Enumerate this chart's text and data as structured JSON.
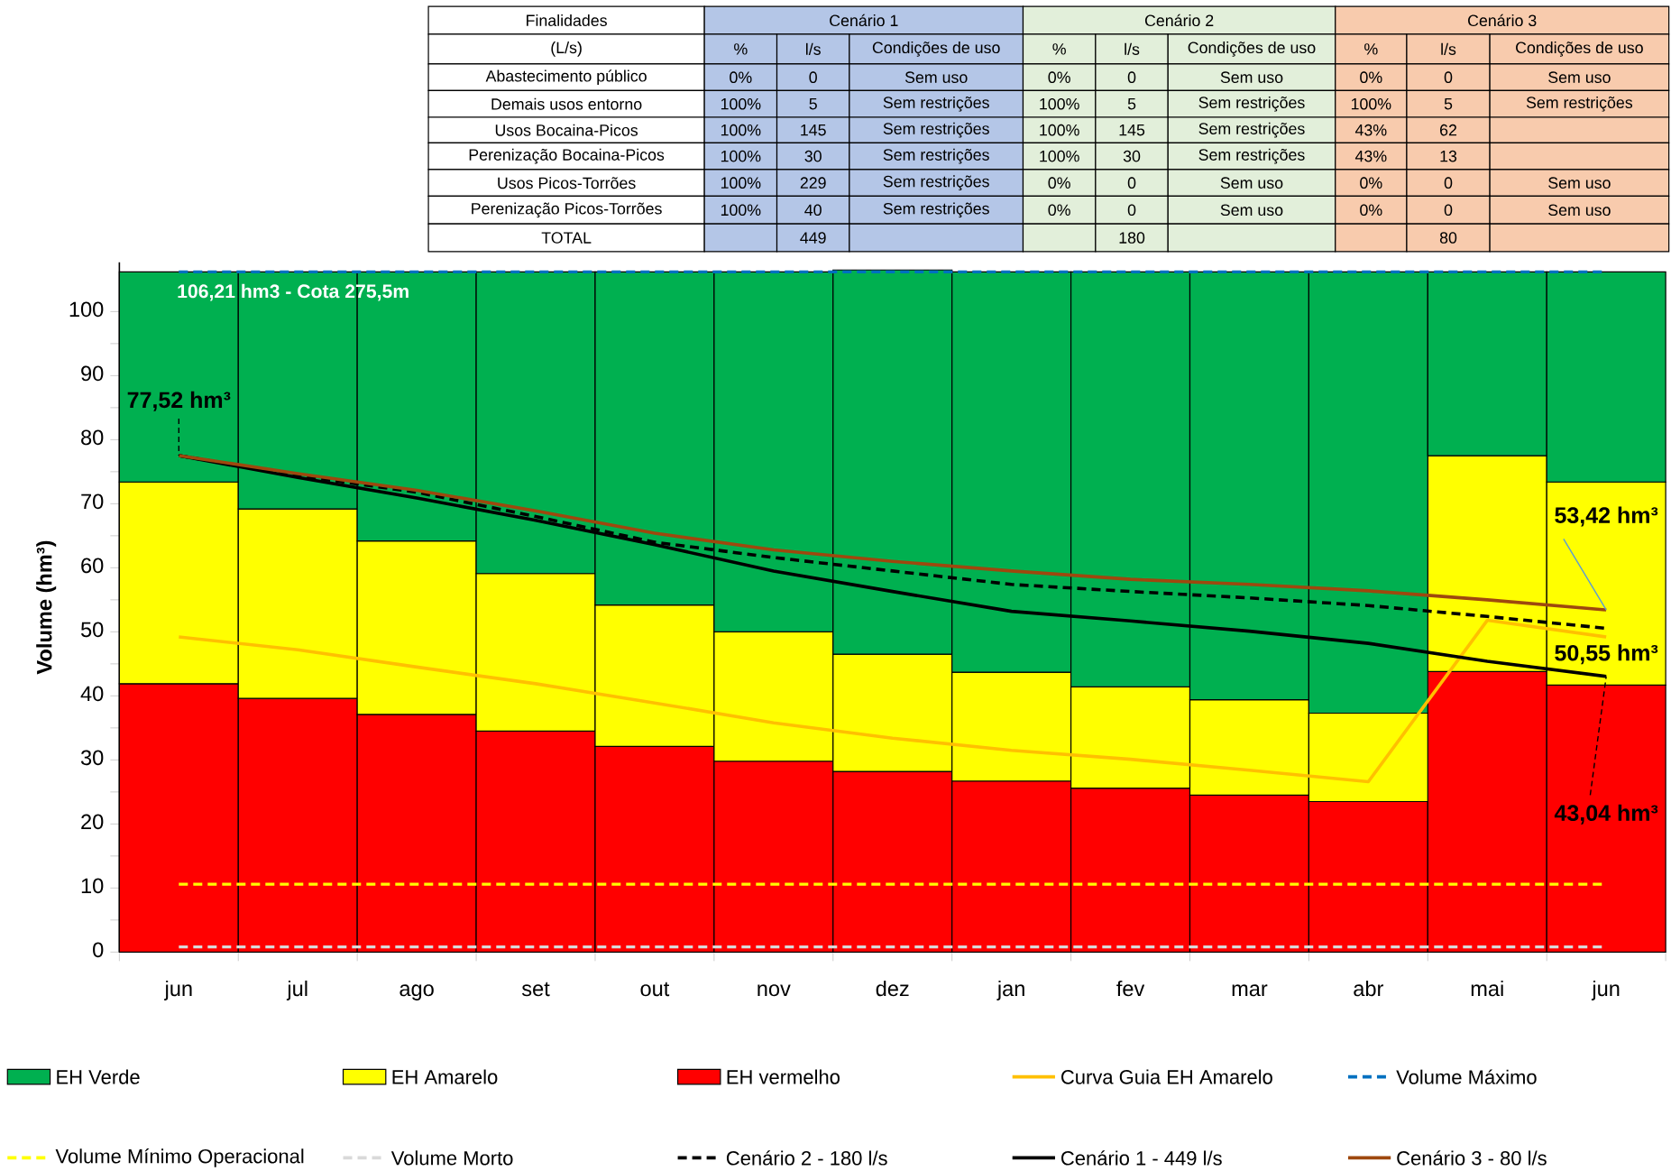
{
  "chart_data": {
    "type": "bar",
    "stacked": true,
    "ylabel": "Volume (hm³)",
    "categories": [
      "jun",
      "jul",
      "ago",
      "set",
      "out",
      "nov",
      "dez",
      "jan",
      "fev",
      "mar",
      "abr",
      "mai",
      "jun"
    ],
    "ylim": [
      0,
      107.7
    ],
    "yticks": [
      0,
      10,
      20,
      30,
      40,
      50,
      60,
      70,
      80,
      90,
      100
    ],
    "legend": "bottom",
    "series": [
      {
        "name": "EH vermelho",
        "color": "#ff0000",
        "values": [
          41.9,
          39.6,
          37.1,
          34.5,
          32.1,
          29.8,
          28.2,
          26.7,
          25.6,
          24.5,
          23.5,
          43.8,
          41.7
        ]
      },
      {
        "name": "EH Amarelo",
        "color": "#ffff00",
        "values": [
          31.5,
          29.6,
          27.1,
          24.6,
          22.1,
          20.2,
          18.3,
          17.0,
          15.8,
          14.9,
          13.8,
          33.7,
          31.7
        ]
      },
      {
        "name": "EH Verde",
        "color": "#00b050",
        "values": [
          32.8,
          37.0,
          42.0,
          47.1,
          52.0,
          56.2,
          60.0,
          62.5,
          64.8,
          66.8,
          68.9,
          28.7,
          32.8
        ]
      },
      {
        "name": "Curva Guia EH Amarelo",
        "type": "line",
        "color": "#ffc000",
        "values": [
          49.2,
          47.2,
          44.5,
          41.9,
          38.9,
          35.8,
          33.4,
          31.5,
          30.1,
          28.4,
          26.6,
          51.8,
          49.2
        ]
      },
      {
        "name": "Cenário 2 - 180 l/s",
        "type": "line",
        "line_style": "dashed",
        "color": "#000000",
        "values": [
          77.52,
          74.4,
          71.8,
          68.0,
          64.0,
          61.6,
          59.5,
          57.4,
          56.3,
          55.3,
          54.1,
          52.4,
          50.55
        ]
      },
      {
        "name": "Cenário 1 - 449 l/s",
        "type": "line",
        "color": "#000000",
        "values": [
          77.52,
          74.1,
          70.9,
          67.4,
          63.6,
          59.5,
          56.3,
          53.2,
          51.7,
          50.1,
          48.2,
          45.4,
          43.04
        ]
      },
      {
        "name": "Cenário 3 - 80 l/s",
        "type": "line",
        "color": "#9e480e",
        "values": [
          77.52,
          74.7,
          72.1,
          68.9,
          65.4,
          62.8,
          61.0,
          59.5,
          58.2,
          57.4,
          56.4,
          55.0,
          53.42
        ]
      }
    ],
    "ref_lines": [
      {
        "axis": "y",
        "value": 106.21,
        "label": "Volume Máximo",
        "color": "#0070c0",
        "line_style": "dashed"
      },
      {
        "axis": "y",
        "value": 10.6,
        "label": "Volume Mínimo Operacional",
        "color": "#ffff00",
        "line_style": "dashed"
      },
      {
        "axis": "y",
        "value": 0.8,
        "label": "Volume Morto",
        "color": "#d9d9d9",
        "line_style": "dashed"
      }
    ],
    "annotations": [
      "106,21 hm3 - Cota 275,5m",
      {
        "text": "77,52 hm³",
        "y": 77.52
      },
      {
        "text": "53,42 hm³",
        "y": 53.42
      },
      "50,55 hm³",
      {
        "text": "43,04 hm³",
        "y": 43.04
      },
      "Finalidades",
      "Cenário 1",
      "Cenário 2",
      "Cenário 3",
      "(L/s)",
      "%",
      "l/s",
      "Condições de uso",
      "%",
      "l/s",
      "Condições de uso",
      "%",
      "l/s",
      "Condições de uso",
      "Abastecimento público",
      "0%",
      "0",
      "Sem uso",
      "0%",
      "0",
      "Sem uso",
      "0%",
      "0",
      "Sem uso",
      "Demais usos entorno",
      "100%",
      "5",
      "Sem restrições",
      "100%",
      "5",
      "Sem restrições",
      "100%",
      "5",
      "Sem restrições",
      "Usos Bocaina-Picos",
      "100%",
      "145",
      "Sem restrições",
      "100%",
      "145",
      "Sem restrições",
      "43%",
      "62",
      "Perenização Bocaina-Picos",
      "100%",
      "30",
      "Sem restrições",
      "100%",
      "30",
      "Sem restrições",
      "43%",
      "13",
      "Usos Picos-Torrões",
      "100%",
      "229",
      "Sem restrições",
      "0%",
      "0",
      "Sem uso",
      "0%",
      "0",
      "Sem uso",
      "Perenização Picos-Torrões",
      "100%",
      "40",
      "Sem restrições",
      "0%",
      "0",
      "Sem uso",
      "0%",
      "0",
      "Sem uso",
      "TOTAL",
      "449",
      "180",
      "80"
    ]
  }
}
